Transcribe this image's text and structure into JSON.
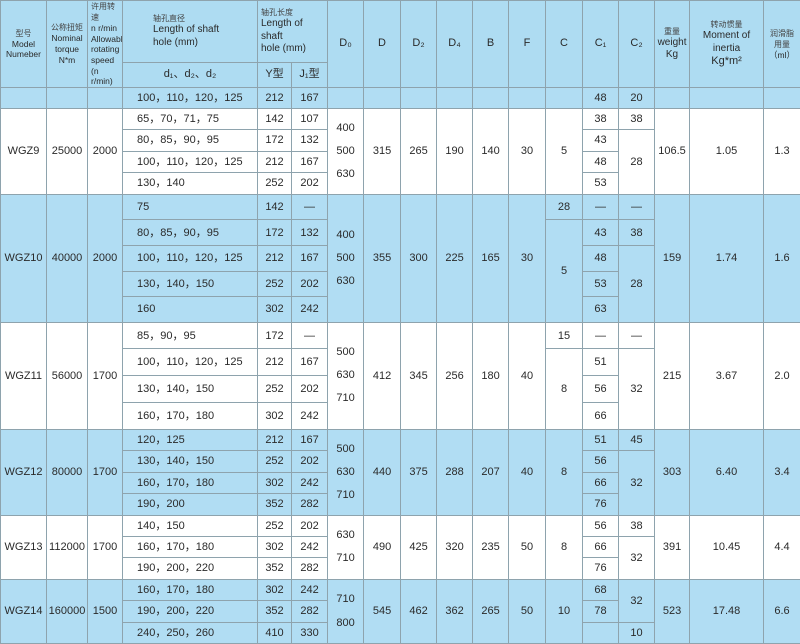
{
  "header": {
    "model": {
      "cn": "型号",
      "en": "Model\nNumeber"
    },
    "torque": {
      "cn": "公称扭矩",
      "en": "Nominal\ntorque\nN*m"
    },
    "speed": {
      "cn": "许用转速",
      "en": "n r/min\nAllowable\nrotating\nspeed\n(n r/min)"
    },
    "shaft_dia": {
      "cn": "轴孔直径",
      "en": "Length of shaft\nhole (mm)",
      "sub": "d₁、d₂、d₂"
    },
    "shaft_len": {
      "cn": "轴孔长度",
      "en": "Length of shaft\nhole (mm)",
      "y": "Y型",
      "j": "J₁型"
    },
    "D0": "D₀",
    "D": "D",
    "D2": "D₂",
    "D4": "D₄",
    "B": "B",
    "F": "F",
    "C": "C",
    "C1": "C₁",
    "C2": "C₂",
    "weight": {
      "cn": "重量",
      "en": "weight\nKg"
    },
    "inertia": {
      "cn": "转动惯量",
      "en": "Moment of\ninertia",
      "unit": "Kg*m²"
    },
    "lube": {
      "cn": "润滑脂\n用量",
      "en": "（ml）"
    }
  },
  "groups": [
    {
      "model": "",
      "torque": "",
      "speed": "",
      "rows": [
        {
          "d": "100，110，120，125",
          "y": "212",
          "j": "167"
        }
      ],
      "D0": "",
      "D": "",
      "D2": "",
      "D4": "",
      "B": "",
      "F": "",
      "C": [
        {
          "v": "",
          "span": 1
        }
      ],
      "C1": [
        {
          "v": "48",
          "span": 1
        }
      ],
      "C2": [
        {
          "v": "20",
          "span": 1
        }
      ],
      "weight": "",
      "inertia": "",
      "lube": ""
    },
    {
      "model": "WGZ9",
      "torque": "25000",
      "speed": "2000",
      "rows": [
        {
          "d": "65，70，71，75",
          "y": "142",
          "j": "107"
        },
        {
          "d": "80，85，90，95",
          "y": "172",
          "j": "132"
        },
        {
          "d": "100，110，120，125",
          "y": "212",
          "j": "167"
        },
        {
          "d": "130，140",
          "y": "252",
          "j": "202"
        }
      ],
      "D0": "400\n500\n630",
      "D": "315",
      "D2": "265",
      "D4": "190",
      "B": "140",
      "F": "30",
      "C": [
        {
          "v": "5",
          "span": 4
        }
      ],
      "C1": [
        {
          "v": "38",
          "span": 1
        },
        {
          "v": "43",
          "span": 1
        },
        {
          "v": "48",
          "span": 1
        },
        {
          "v": "53",
          "span": 1
        }
      ],
      "C2": [
        {
          "v": "38",
          "span": 1
        },
        {
          "v": "28",
          "span": 3
        }
      ],
      "weight": "106.5",
      "inertia": "1.05",
      "lube": "1.3"
    },
    {
      "model": "WGZ10",
      "torque": "40000",
      "speed": "2000",
      "rows": [
        {
          "d": "75",
          "y": "142",
          "j": "—"
        },
        {
          "d": "80，85，90，95",
          "y": "172",
          "j": "132"
        },
        {
          "d": "100，110，120，125",
          "y": "212",
          "j": "167"
        },
        {
          "d": "130，140，150",
          "y": "252",
          "j": "202"
        },
        {
          "d": "160",
          "y": "302",
          "j": "242"
        }
      ],
      "D0": "400\n500\n630",
      "D": "355",
      "D2": "300",
      "D4": "225",
      "B": "165",
      "F": "30",
      "C": [
        {
          "v": "28",
          "span": 1
        },
        {
          "v": "5",
          "span": 4
        }
      ],
      "C1": [
        {
          "v": "—",
          "span": 1
        },
        {
          "v": "43",
          "span": 1
        },
        {
          "v": "48",
          "span": 1
        },
        {
          "v": "53",
          "span": 1
        },
        {
          "v": "63",
          "span": 1
        }
      ],
      "C2": [
        {
          "v": "—",
          "span": 1
        },
        {
          "v": "38",
          "span": 1
        },
        {
          "v": "28",
          "span": 3
        }
      ],
      "weight": "159",
      "inertia": "1.74",
      "lube": "1.6"
    },
    {
      "model": "WGZ11",
      "torque": "56000",
      "speed": "1700",
      "rows": [
        {
          "d": "85，90，95",
          "y": "172",
          "j": "—"
        },
        {
          "d": "100，110，120，125",
          "y": "212",
          "j": "167"
        },
        {
          "d": "130，140，150",
          "y": "252",
          "j": "202"
        },
        {
          "d": "160，170，180",
          "y": "302",
          "j": "242"
        }
      ],
      "D0": "500\n630\n710",
      "D": "412",
      "D2": "345",
      "D4": "256",
      "B": "180",
      "F": "40",
      "C": [
        {
          "v": "15",
          "span": 1
        },
        {
          "v": "8",
          "span": 3
        }
      ],
      "C1": [
        {
          "v": "—",
          "span": 1
        },
        {
          "v": "51",
          "span": 1
        },
        {
          "v": "56",
          "span": 1
        },
        {
          "v": "66",
          "span": 1
        }
      ],
      "C2": [
        {
          "v": "—",
          "span": 1
        },
        {
          "v": "32",
          "span": 3
        }
      ],
      "weight": "215",
      "inertia": "3.67",
      "lube": "2.0"
    },
    {
      "model": "WGZ12",
      "torque": "80000",
      "speed": "1700",
      "rows": [
        {
          "d": "120，125",
          "y": "212",
          "j": "167"
        },
        {
          "d": "130，140，150",
          "y": "252",
          "j": "202"
        },
        {
          "d": "160，170，180",
          "y": "302",
          "j": "242"
        },
        {
          "d": "190，200",
          "y": "352",
          "j": "282"
        }
      ],
      "D0": "500\n630\n710",
      "D": "440",
      "D2": "375",
      "D4": "288",
      "B": "207",
      "F": "40",
      "C": [
        {
          "v": "8",
          "span": 4
        }
      ],
      "C1": [
        {
          "v": "51",
          "span": 1
        },
        {
          "v": "56",
          "span": 1
        },
        {
          "v": "66",
          "span": 1
        },
        {
          "v": "76",
          "span": 1
        }
      ],
      "C2": [
        {
          "v": "45",
          "span": 1
        },
        {
          "v": "32",
          "span": 3
        }
      ],
      "weight": "303",
      "inertia": "6.40",
      "lube": "3.4"
    },
    {
      "model": "WGZ13",
      "torque": "112000",
      "speed": "1700",
      "rows": [
        {
          "d": "140，150",
          "y": "252",
          "j": "202"
        },
        {
          "d": "160，170，180",
          "y": "302",
          "j": "242"
        },
        {
          "d": "190，200，220",
          "y": "352",
          "j": "282"
        }
      ],
      "D0": "630\n710",
      "D": "490",
      "D2": "425",
      "D4": "320",
      "B": "235",
      "F": "50",
      "C": [
        {
          "v": "8",
          "span": 3
        }
      ],
      "C1": [
        {
          "v": "56",
          "span": 1
        },
        {
          "v": "66",
          "span": 1
        },
        {
          "v": "76",
          "span": 1
        }
      ],
      "C2": [
        {
          "v": "38",
          "span": 1
        },
        {
          "v": "32",
          "span": 2
        }
      ],
      "weight": "391",
      "inertia": "10.45",
      "lube": "4.4"
    },
    {
      "model": "WGZ14",
      "torque": "160000",
      "speed": "1500",
      "rows": [
        {
          "d": "160，170，180",
          "y": "302",
          "j": "242"
        },
        {
          "d": "190，200，220",
          "y": "352",
          "j": "282"
        },
        {
          "d": "240，250，260",
          "y": "410",
          "j": "330"
        }
      ],
      "D0": "710\n800",
      "D": "545",
      "D2": "462",
      "D4": "362",
      "B": "265",
      "F": "50",
      "C": [
        {
          "v": "10",
          "span": 3
        }
      ],
      "C1": [
        {
          "v": "68",
          "span": 1
        },
        {
          "v": "78",
          "span": 1
        },
        {
          "v": "",
          "span": 1
        }
      ],
      "C2": [
        {
          "v": "32",
          "span": 2
        },
        {
          "v": "10",
          "span": 1
        }
      ],
      "weight": "523",
      "inertia": "17.48",
      "lube": "6.6"
    }
  ]
}
